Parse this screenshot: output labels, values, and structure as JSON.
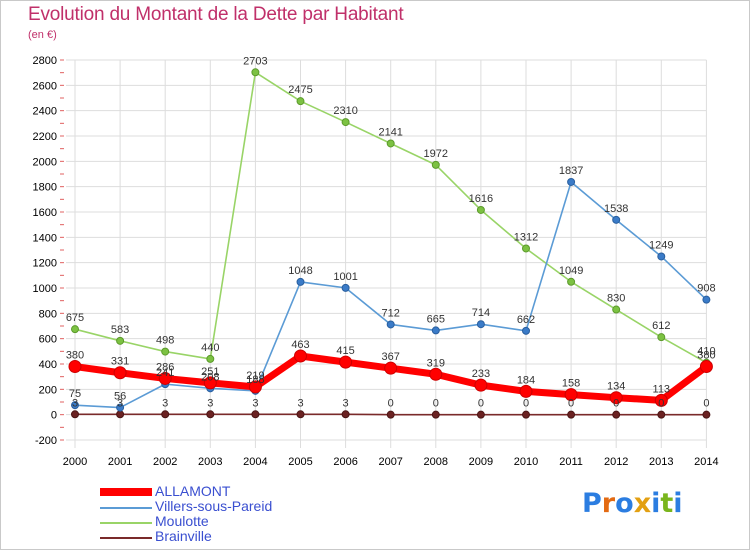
{
  "title": "Evolution du Montant de la Dette par Habitant",
  "subtitle": "(en €)",
  "logo": {
    "letters": [
      "P",
      "r",
      "o",
      "x",
      "i",
      "t",
      "i"
    ],
    "colors": [
      "#2b7de1",
      "#e36a12",
      "#2b7de1",
      "#e3a012",
      "#2b7de1",
      "#7ab51d",
      "#2b7de1"
    ]
  },
  "chart_data": {
    "type": "line",
    "categories": [
      "2000",
      "2001",
      "2002",
      "2003",
      "2004",
      "2005",
      "2006",
      "2007",
      "2008",
      "2009",
      "2010",
      "2011",
      "2012",
      "2013",
      "2014"
    ],
    "ylim": [
      -200,
      2800
    ],
    "yticks": [
      "-200",
      "0",
      "200",
      "400",
      "600",
      "800",
      "1000",
      "1200",
      "1400",
      "1600",
      "1800",
      "2000",
      "2200",
      "2400",
      "2600",
      "2800"
    ],
    "grid": true,
    "legend_position": "bottom-left",
    "series": [
      {
        "name": "ALLAMONT",
        "color": "#ff0000",
        "values": [
          380,
          331,
          286,
          251,
          219,
          463,
          415,
          367,
          319,
          233,
          184,
          158,
          134,
          113,
          380
        ],
        "labels": [
          "380",
          "331",
          "286",
          "251",
          "219",
          "463",
          "415",
          "367",
          "319",
          "233",
          "184",
          "158",
          "134",
          "113",
          "380"
        ]
      },
      {
        "name": "Villers-sous-Pareid",
        "color": "#5b9bd5",
        "values": [
          75,
          56,
          241,
          208,
          188,
          1048,
          1001,
          712,
          665,
          714,
          662,
          1837,
          1538,
          1249,
          908
        ],
        "labels": [
          "75",
          "56",
          "241",
          "208",
          "188",
          "1048",
          "1001",
          "712",
          "665",
          "714",
          "662",
          "1837",
          "1538",
          "1249",
          "908"
        ]
      },
      {
        "name": "Moulotte",
        "color": "#99d467",
        "values": [
          675,
          583,
          498,
          440,
          2703,
          2475,
          2310,
          2141,
          1972,
          1616,
          1312,
          1049,
          830,
          612,
          410
        ],
        "labels": [
          "675",
          "583",
          "498",
          "440",
          "2703",
          "2475",
          "2310",
          "2141",
          "1972",
          "1616",
          "1312",
          "1049",
          "830",
          "612",
          "410"
        ]
      },
      {
        "name": "Brainville",
        "color": "#7a2a2a",
        "values": [
          3,
          3,
          3,
          3,
          3,
          3,
          3,
          0,
          0,
          0,
          0,
          0,
          0,
          0,
          0
        ],
        "labels": [
          "3",
          "3",
          "3",
          "3",
          "3",
          "3",
          "3",
          "0",
          "0",
          "0",
          "0",
          "0",
          "0",
          "0",
          "0"
        ]
      }
    ]
  }
}
